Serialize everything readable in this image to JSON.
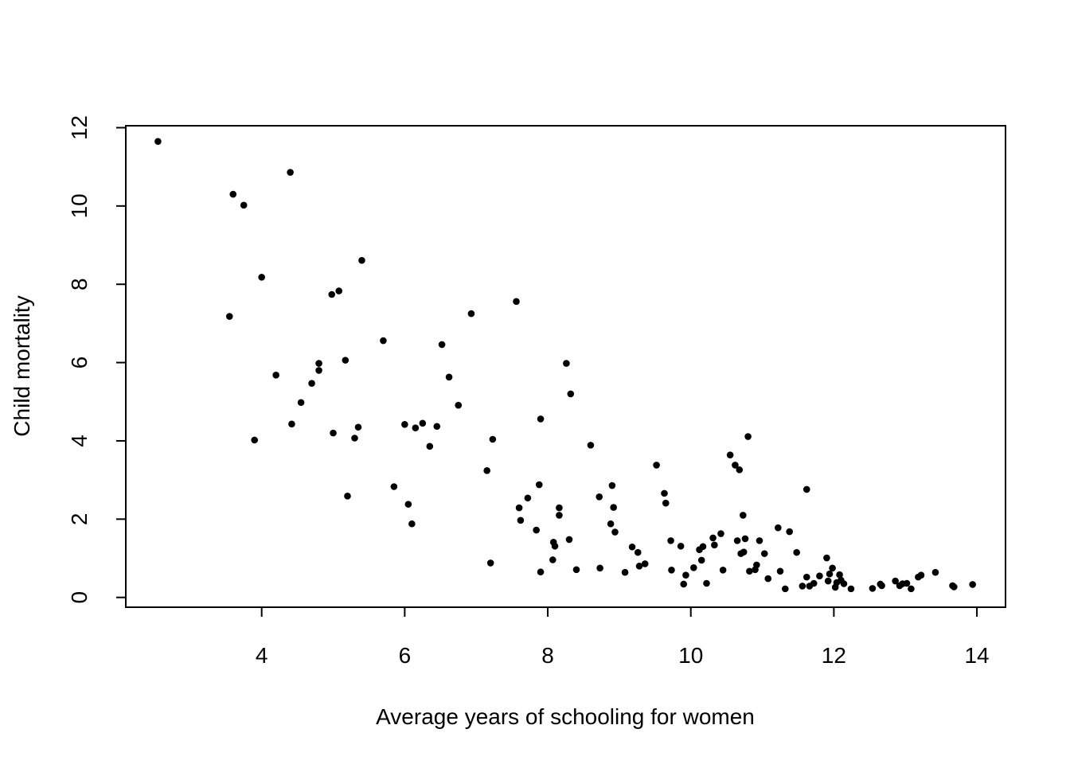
{
  "chart_data": {
    "type": "scatter",
    "title": "",
    "xlabel": "Average years of schooling for women",
    "ylabel": "Child mortality",
    "xlim": [
      2.1,
      14.4
    ],
    "ylim": [
      -0.25,
      12.05
    ],
    "xticks": [
      4,
      6,
      8,
      10,
      12,
      14
    ],
    "yticks": [
      0,
      2,
      4,
      6,
      8,
      10,
      12
    ],
    "grid": false,
    "legend": "none",
    "point_color": "#000000",
    "x": [
      2.55,
      3.6,
      3.55,
      3.75,
      3.9,
      4.0,
      4.2,
      4.4,
      4.42,
      4.55,
      4.7,
      4.8,
      4.8,
      4.98,
      5.0,
      5.08,
      5.17,
      5.2,
      5.3,
      5.35,
      5.4,
      5.7,
      5.85,
      6.0,
      6.05,
      6.1,
      6.15,
      6.25,
      6.35,
      6.45,
      6.52,
      6.62,
      6.75,
      6.93,
      7.15,
      7.2,
      7.23,
      7.56,
      7.6,
      7.62,
      7.72,
      7.84,
      7.88,
      7.9,
      7.9,
      8.07,
      8.08,
      8.1,
      8.16,
      8.16,
      8.26,
      8.3,
      8.32,
      8.4,
      8.6,
      8.72,
      8.73,
      8.88,
      8.9,
      8.92,
      8.94,
      9.08,
      9.18,
      9.26,
      9.28,
      9.36,
      9.52,
      9.63,
      9.65,
      9.72,
      9.73,
      9.86,
      9.9,
      9.93,
      10.04,
      10.12,
      10.15,
      10.17,
      10.22,
      10.31,
      10.33,
      10.42,
      10.45,
      10.55,
      10.62,
      10.65,
      10.68,
      10.7,
      10.73,
      10.74,
      10.76,
      10.8,
      10.82,
      10.9,
      10.92,
      10.96,
      11.03,
      11.08,
      11.22,
      11.25,
      11.32,
      11.38,
      11.48,
      11.56,
      11.62,
      11.62,
      11.66,
      11.72,
      11.8,
      11.9,
      11.92,
      11.94,
      11.98,
      12.02,
      12.04,
      12.08,
      12.1,
      12.14,
      12.24,
      12.54,
      12.65,
      12.67,
      12.86,
      12.92,
      12.96,
      13.02,
      13.08,
      13.18,
      13.22,
      13.42,
      13.66,
      13.68,
      13.94
    ],
    "y": [
      11.65,
      10.3,
      7.18,
      10.02,
      4.02,
      8.18,
      5.68,
      10.86,
      4.43,
      4.98,
      5.47,
      5.98,
      5.8,
      7.74,
      4.2,
      7.83,
      6.06,
      2.59,
      4.07,
      4.35,
      8.61,
      6.56,
      2.83,
      4.42,
      2.38,
      1.88,
      4.33,
      4.45,
      3.86,
      4.37,
      6.46,
      5.63,
      4.91,
      7.25,
      3.24,
      0.88,
      4.04,
      7.56,
      2.29,
      1.97,
      2.54,
      1.72,
      2.88,
      4.56,
      0.65,
      0.96,
      1.41,
      1.31,
      2.29,
      2.1,
      5.98,
      1.48,
      5.2,
      0.71,
      3.89,
      2.57,
      0.75,
      1.88,
      2.86,
      2.3,
      1.67,
      0.64,
      1.29,
      1.15,
      0.8,
      0.86,
      3.38,
      2.66,
      2.41,
      1.45,
      0.7,
      1.31,
      0.34,
      0.57,
      0.76,
      1.22,
      0.95,
      1.3,
      0.36,
      1.52,
      1.34,
      1.63,
      0.7,
      3.64,
      3.38,
      1.45,
      3.26,
      1.12,
      2.1,
      1.16,
      1.5,
      4.11,
      0.67,
      0.71,
      0.83,
      1.45,
      1.12,
      0.48,
      1.78,
      0.67,
      0.22,
      1.68,
      1.15,
      0.29,
      2.76,
      0.52,
      0.29,
      0.36,
      0.55,
      1.01,
      0.42,
      0.6,
      0.75,
      0.26,
      0.38,
      0.58,
      0.44,
      0.35,
      0.22,
      0.23,
      0.34,
      0.3,
      0.42,
      0.3,
      0.35,
      0.36,
      0.22,
      0.52,
      0.57,
      0.64,
      0.3,
      0.27,
      0.33
    ]
  }
}
